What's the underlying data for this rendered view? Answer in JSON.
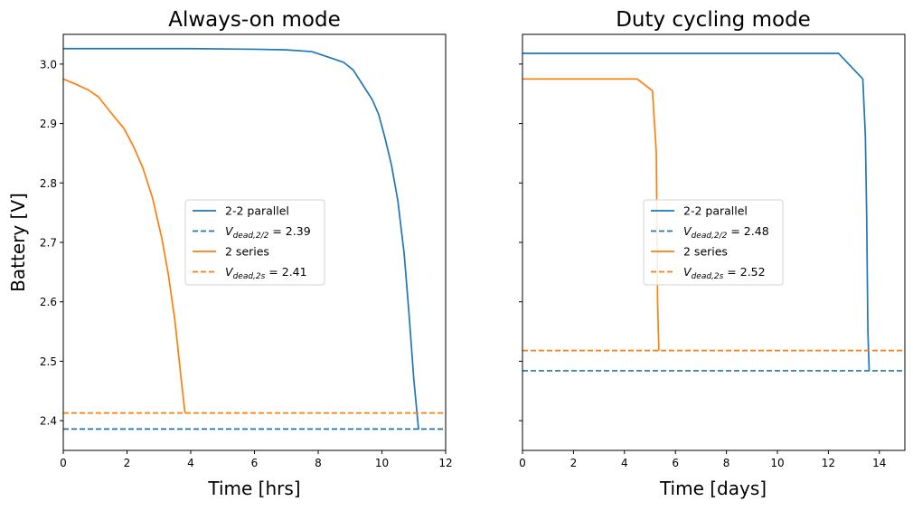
{
  "shared_ylabel": "Battery [V]",
  "colors": {
    "parallel": "#1f77b4",
    "series": "#ff7f0e"
  },
  "chart_data": [
    {
      "type": "line",
      "title": "Always-on mode",
      "xlabel": "Time [hrs]",
      "ylabel": "Battery [V]",
      "xlim": [
        0,
        12
      ],
      "ylim": [
        2.35,
        3.05
      ],
      "xticks": [
        0,
        2,
        4,
        6,
        8,
        10,
        12
      ],
      "yticks": [
        2.4,
        2.5,
        2.6,
        2.7,
        2.8,
        2.9,
        3.0
      ],
      "ytick_labels": [
        "2.4",
        "2.5",
        "2.6",
        "2.7",
        "2.8",
        "2.9",
        "3.0"
      ],
      "grid": false,
      "legend_position": "center-right",
      "series": [
        {
          "name": "2-2 parallel",
          "color": "#1f77b4",
          "style": "solid",
          "x": [
            0,
            2,
            4,
            6,
            7,
            7.8,
            8.3,
            8.8,
            9.1,
            9.4,
            9.7,
            9.9,
            10.1,
            10.3,
            10.5,
            10.7,
            10.85,
            11.0,
            11.15
          ],
          "y": [
            3.026,
            3.026,
            3.026,
            3.025,
            3.024,
            3.021,
            3.012,
            3.003,
            2.99,
            2.965,
            2.94,
            2.915,
            2.875,
            2.83,
            2.77,
            2.68,
            2.58,
            2.47,
            2.385
          ]
        },
        {
          "name": "V_dead,2/2 = 2.39",
          "label_main": "V",
          "label_sub": "dead,2/2",
          "label_tail": " = 2.39",
          "color": "#1f77b4",
          "style": "dashed",
          "x": [
            0,
            12
          ],
          "y": [
            2.386,
            2.386
          ]
        },
        {
          "name": "2 series",
          "color": "#ff7f0e",
          "style": "solid",
          "x": [
            0,
            0.4,
            0.8,
            1.1,
            1.5,
            1.9,
            2.2,
            2.5,
            2.8,
            3.1,
            3.3,
            3.5,
            3.7,
            3.82
          ],
          "y": [
            2.975,
            2.966,
            2.956,
            2.945,
            2.918,
            2.892,
            2.862,
            2.825,
            2.775,
            2.705,
            2.645,
            2.57,
            2.47,
            2.413
          ]
        },
        {
          "name": "V_dead,2s = 2.41",
          "label_main": "V",
          "label_sub": "dead,2s",
          "label_tail": " = 2.41",
          "color": "#ff7f0e",
          "style": "dashed",
          "x": [
            0,
            12
          ],
          "y": [
            2.413,
            2.413
          ]
        }
      ]
    },
    {
      "type": "line",
      "title": "Duty cycling mode",
      "xlabel": "Time [days]",
      "xlim": [
        0,
        15
      ],
      "ylim": [
        2.35,
        3.05
      ],
      "xticks": [
        0,
        2,
        4,
        6,
        8,
        10,
        12,
        14
      ],
      "yticks": [
        2.4,
        2.5,
        2.6,
        2.7,
        2.8,
        2.9,
        3.0
      ],
      "grid": false,
      "legend_position": "center",
      "series": [
        {
          "name": "2-2 parallel",
          "color": "#1f77b4",
          "style": "solid",
          "x": [
            0,
            12.4,
            13.35,
            13.45,
            13.5,
            13.55,
            13.6
          ],
          "y": [
            3.018,
            3.018,
            2.975,
            2.88,
            2.75,
            2.55,
            2.484
          ]
        },
        {
          "name": "V_dead,2/2 = 2.48",
          "label_main": "V",
          "label_sub": "dead,2/2",
          "label_tail": " = 2.48",
          "color": "#1f77b4",
          "style": "dashed",
          "x": [
            0,
            15
          ],
          "y": [
            2.484,
            2.484
          ]
        },
        {
          "name": "2 series",
          "color": "#ff7f0e",
          "style": "solid",
          "x": [
            0,
            4.5,
            5.1,
            5.25,
            5.3,
            5.35
          ],
          "y": [
            2.975,
            2.975,
            2.955,
            2.85,
            2.6,
            2.518
          ]
        },
        {
          "name": "V_dead,2s = 2.52",
          "label_main": "V",
          "label_sub": "dead,2s",
          "label_tail": " = 2.52",
          "color": "#ff7f0e",
          "style": "dashed",
          "x": [
            0,
            15
          ],
          "y": [
            2.518,
            2.518
          ]
        }
      ]
    }
  ]
}
